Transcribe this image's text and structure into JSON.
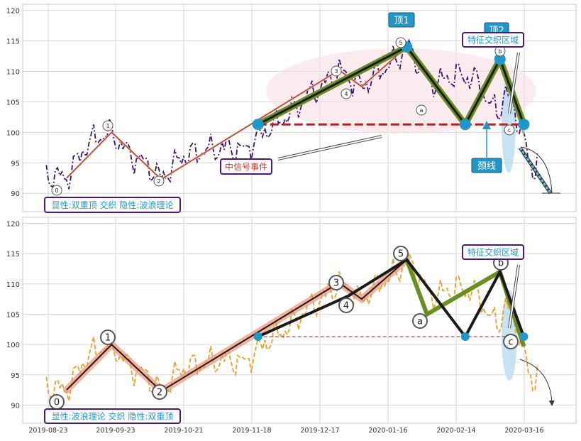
{
  "chart_data": {
    "type": "line",
    "x_ticks": [
      "2019-08-23",
      "2019-09-23",
      "2019-10-21",
      "2019-11-18",
      "2019-12-17",
      "2020-01-16",
      "2020-02-14",
      "2020-03-16"
    ],
    "y_ticks": [
      90,
      95,
      100,
      105,
      110,
      115,
      120
    ],
    "ylim": [
      87,
      121
    ],
    "grid": true,
    "panels": [
      {
        "price_series_color": "#3d0f73",
        "label_box": "显性:双重顶 交织 隐性:波浪理论",
        "wave_labels": [
          "0",
          "1",
          "2",
          "3",
          "4",
          "5",
          "a",
          "b",
          "c"
        ],
        "wave_line_x": [
          2.5,
          12.5,
          23.5,
          63,
          68,
          78,
          91,
          98.7,
          104
        ],
        "wave_line_y": [
          92.5,
          100,
          92.3,
          110.2,
          107.5,
          114,
          101.5,
          112,
          99.7
        ],
        "pattern_line_x": [
          45,
          65,
          78,
          91,
          98.7,
          104
        ],
        "pattern_line_y": [
          101.3,
          108,
          114,
          101.3,
          112,
          101.3
        ],
        "neckline_y": 101.3,
        "annotations": [
          "顶1",
          "顶2",
          "特征交织区域",
          "中信号事件",
          "颈线"
        ]
      },
      {
        "price_series_color": "#e8a028",
        "label_box": "显性:波浪理论 交织 隐性:双重顶",
        "wave_labels": [
          "0",
          "1",
          "2",
          "3",
          "4",
          "5",
          "a",
          "b",
          "c"
        ],
        "annotations": [
          "特征交织区域"
        ]
      }
    ]
  },
  "colors": {
    "grid": "#d6d6d6",
    "plot_bg": "#ffffff",
    "label_blue": "#2196c8",
    "label_border": "#4b1779",
    "annotation_red": "#c0392b",
    "wave_black": "#1a1a1a",
    "wave_green": "#6b8e23",
    "neckline_red": "#b22222",
    "salmon": "#f08a6a",
    "light_blue": "#6fb6dc",
    "pink_ellipse": "#f6dde2"
  }
}
